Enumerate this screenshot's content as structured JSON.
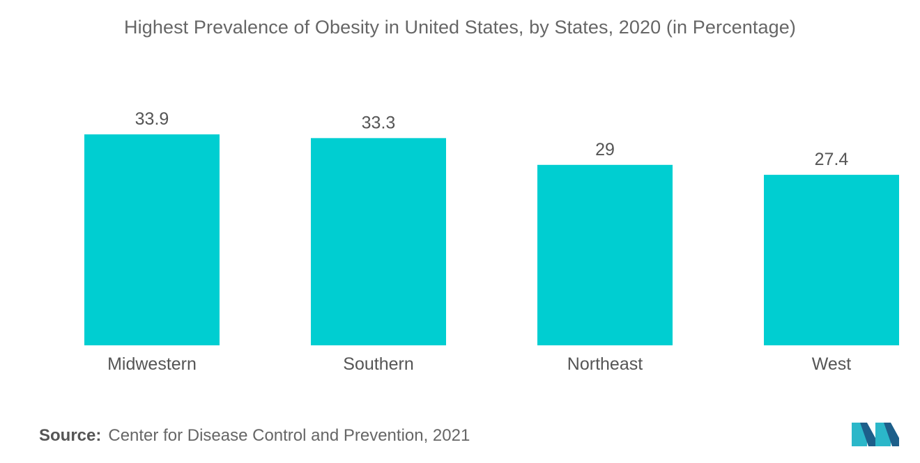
{
  "title": "Highest Prevalence of Obesity in United States, by States, 2020 (in Percentage)",
  "source": {
    "label": "Source:",
    "text": "Center for Disease Control and Prevention, 2021"
  },
  "colors": {
    "bar": "#00CED1",
    "text": "#555555",
    "logo_dark": "#1d5f8a",
    "logo_light": "#2bb7c9"
  },
  "logo_icon": "mordor-intelligence-logo-icon",
  "chart_data": {
    "type": "bar",
    "title": "Highest Prevalence of Obesity in United States, by States, 2020 (in Percentage)",
    "categories": [
      "Midwestern",
      "Southern",
      "Northeast",
      "West"
    ],
    "values": [
      33.9,
      33.3,
      29,
      27.4
    ],
    "data_labels": [
      "33.9",
      "33.3",
      "29",
      "27.4"
    ],
    "xlabel": "",
    "ylabel": "",
    "ylim": [
      0,
      33.9
    ],
    "grid": false,
    "legend": "none"
  }
}
